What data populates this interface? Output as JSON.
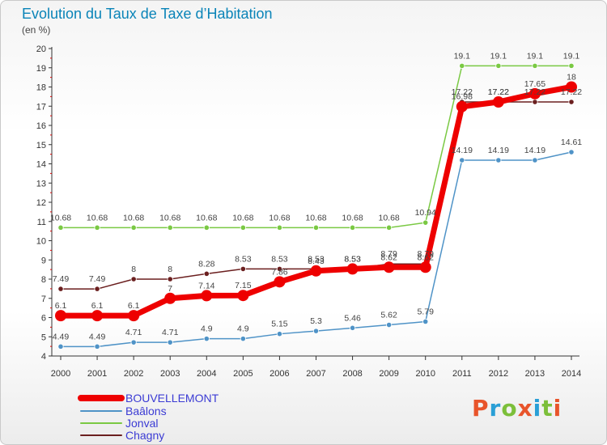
{
  "header": {
    "title": "Evolution du Taux de Taxe d’Habitation",
    "unit": "(en %)"
  },
  "logo": {
    "text": "Proxiti",
    "colors": [
      "#e8542b",
      "#2a9fd6",
      "#7cbf3a",
      "#e8542b",
      "#2a9fd6",
      "#7cbf3a",
      "#e8542b"
    ]
  },
  "chart_data": {
    "type": "line",
    "title": "Evolution du Taux de Taxe d’Habitation",
    "ylabel": "(en %)",
    "xlabel": "",
    "ylim": [
      4,
      20
    ],
    "yticks": [
      4,
      5,
      6,
      7,
      8,
      9,
      10,
      11,
      12,
      13,
      14,
      15,
      16,
      17,
      18,
      19,
      20
    ],
    "x": [
      "2000",
      "2001",
      "2002",
      "2003",
      "2004",
      "2005",
      "2006",
      "2007",
      "2008",
      "2009",
      "2010",
      "2011",
      "2012",
      "2013",
      "2014"
    ],
    "grid": false,
    "legend_position": "bottom-left",
    "series": [
      {
        "name": "BOUVELLEMONT",
        "color": "#ee0000",
        "values": [
          6.1,
          6.1,
          6.1,
          7,
          7.14,
          7.15,
          7.86,
          8.43,
          8.53,
          8.62,
          8.62,
          16.98,
          17.22,
          17.65,
          18
        ]
      },
      {
        "name": "Baâlons",
        "color": "#4f93c7",
        "values": [
          4.49,
          4.49,
          4.71,
          4.71,
          4.9,
          4.9,
          5.15,
          5.3,
          5.46,
          5.62,
          5.79,
          14.19,
          14.19,
          14.19,
          14.61
        ]
      },
      {
        "name": "Jonval",
        "color": "#7ac943",
        "values": [
          10.68,
          10.68,
          10.68,
          10.68,
          10.68,
          10.68,
          10.68,
          10.68,
          10.68,
          10.68,
          10.94,
          19.1,
          19.1,
          19.1,
          19.1
        ]
      },
      {
        "name": "Chagny",
        "color": "#6b1f1f",
        "values": [
          7.49,
          7.49,
          8,
          8,
          8.28,
          8.53,
          8.53,
          8.53,
          8.53,
          8.79,
          8.79,
          17.22,
          17.22,
          17.22,
          17.22
        ]
      }
    ],
    "data_labels": [
      [
        "6.1",
        "6.1",
        "6.1",
        "7",
        "7.14",
        "7.15",
        "7.86",
        "8.43",
        "8.53",
        "8.62",
        "8.62",
        "16.98",
        "17.22",
        "17.65",
        "18"
      ],
      [
        "4.49",
        "4.49",
        "4.71",
        "4.71",
        "4.9",
        "4.9",
        "5.15",
        "5.3",
        "5.46",
        "5.62",
        "5.79",
        "14.19",
        "14.19",
        "14.19",
        "14.61"
      ],
      [
        "10.68",
        "10.68",
        "10.68",
        "10.68",
        "10.68",
        "10.68",
        "10.68",
        "10.68",
        "10.68",
        "10.68",
        "10.94",
        "19.1",
        "19.1",
        "19.1",
        "19.1"
      ],
      [
        "7.49",
        "7.49",
        "8",
        "8",
        "8.28",
        "8.53",
        "8.53",
        "8.53",
        "8.53",
        "8.79",
        "8.79",
        "17.22",
        "17.22",
        "17.22",
        "17.22"
      ]
    ]
  }
}
